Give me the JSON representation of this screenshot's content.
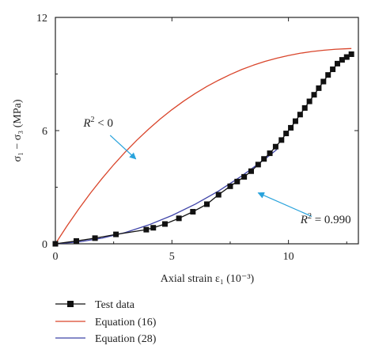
{
  "chart_data": {
    "type": "line",
    "title": "",
    "xlabel": "Axial strain ε₁ (10⁻³)",
    "ylabel": "σ₁ − σ₃ (MPa)",
    "xlim": [
      0,
      13
    ],
    "ylim": [
      0,
      12
    ],
    "x_ticks": [
      0,
      5,
      10
    ],
    "y_ticks": [
      0,
      6,
      12
    ],
    "grid": false,
    "legend_position": "bottom-left",
    "series": [
      {
        "name": "Test data",
        "style": "line-with-square-markers",
        "color": "#111111",
        "x": [
          0.0,
          0.9,
          1.7,
          2.6,
          3.9,
          4.2,
          4.7,
          5.3,
          5.9,
          6.5,
          7.0,
          7.5,
          7.8,
          8.1,
          8.4,
          8.7,
          8.95,
          9.2,
          9.45,
          9.7,
          9.9,
          10.1,
          10.3,
          10.5,
          10.7,
          10.9,
          11.1,
          11.3,
          11.5,
          11.7,
          11.9,
          12.1,
          12.3,
          12.5,
          12.7
        ],
        "y": [
          0.0,
          0.15,
          0.3,
          0.5,
          0.75,
          0.85,
          1.05,
          1.35,
          1.7,
          2.1,
          2.6,
          3.05,
          3.3,
          3.55,
          3.85,
          4.2,
          4.5,
          4.8,
          5.15,
          5.5,
          5.85,
          6.15,
          6.5,
          6.85,
          7.2,
          7.55,
          7.9,
          8.25,
          8.6,
          8.95,
          9.25,
          9.55,
          9.75,
          9.9,
          10.05
        ]
      },
      {
        "name": "Equation (16)",
        "style": "line",
        "color": "#d9452b",
        "x": [
          0,
          0.5,
          1,
          1.5,
          2,
          2.5,
          3,
          3.5,
          4,
          4.5,
          5,
          5.5,
          6,
          6.5,
          7,
          7.5,
          8,
          8.5,
          9,
          9.5,
          10,
          10.5,
          11,
          11.5,
          12,
          12.5,
          12.7
        ],
        "y": [
          0,
          0.95,
          1.84,
          2.68,
          3.46,
          4.19,
          4.87,
          5.5,
          6.08,
          6.62,
          7.11,
          7.56,
          7.97,
          8.34,
          8.67,
          8.97,
          9.24,
          9.47,
          9.67,
          9.84,
          9.98,
          10.1,
          10.19,
          10.26,
          10.31,
          10.34,
          10.35
        ]
      },
      {
        "name": "Equation (28)",
        "style": "line",
        "color": "#3f44a8",
        "x": [
          0,
          1,
          2,
          3,
          4,
          5,
          6,
          7,
          8,
          9,
          9.5
        ],
        "y": [
          0,
          0.1,
          0.3,
          0.6,
          1.0,
          1.5,
          2.1,
          2.8,
          3.6,
          4.5,
          5.0
        ]
      }
    ],
    "annotations": [
      {
        "id": "eq16",
        "text_main": "R",
        "text_sup": "2",
        "text_rest": " < 0",
        "label_at": [
          1.2,
          6.2
        ],
        "arrow_from": [
          2.35,
          5.75
        ],
        "arrow_to": [
          3.45,
          4.5
        ],
        "arrow_color": "#29a3dc"
      },
      {
        "id": "eq28",
        "text_main": "R",
        "text_sup": "2",
        "text_rest": " = 0.990",
        "label_at": [
          11.6,
          1.1
        ],
        "arrow_from": [
          11.0,
          1.45
        ],
        "arrow_to": [
          8.7,
          2.7
        ],
        "arrow_color": "#29a3dc"
      }
    ]
  }
}
